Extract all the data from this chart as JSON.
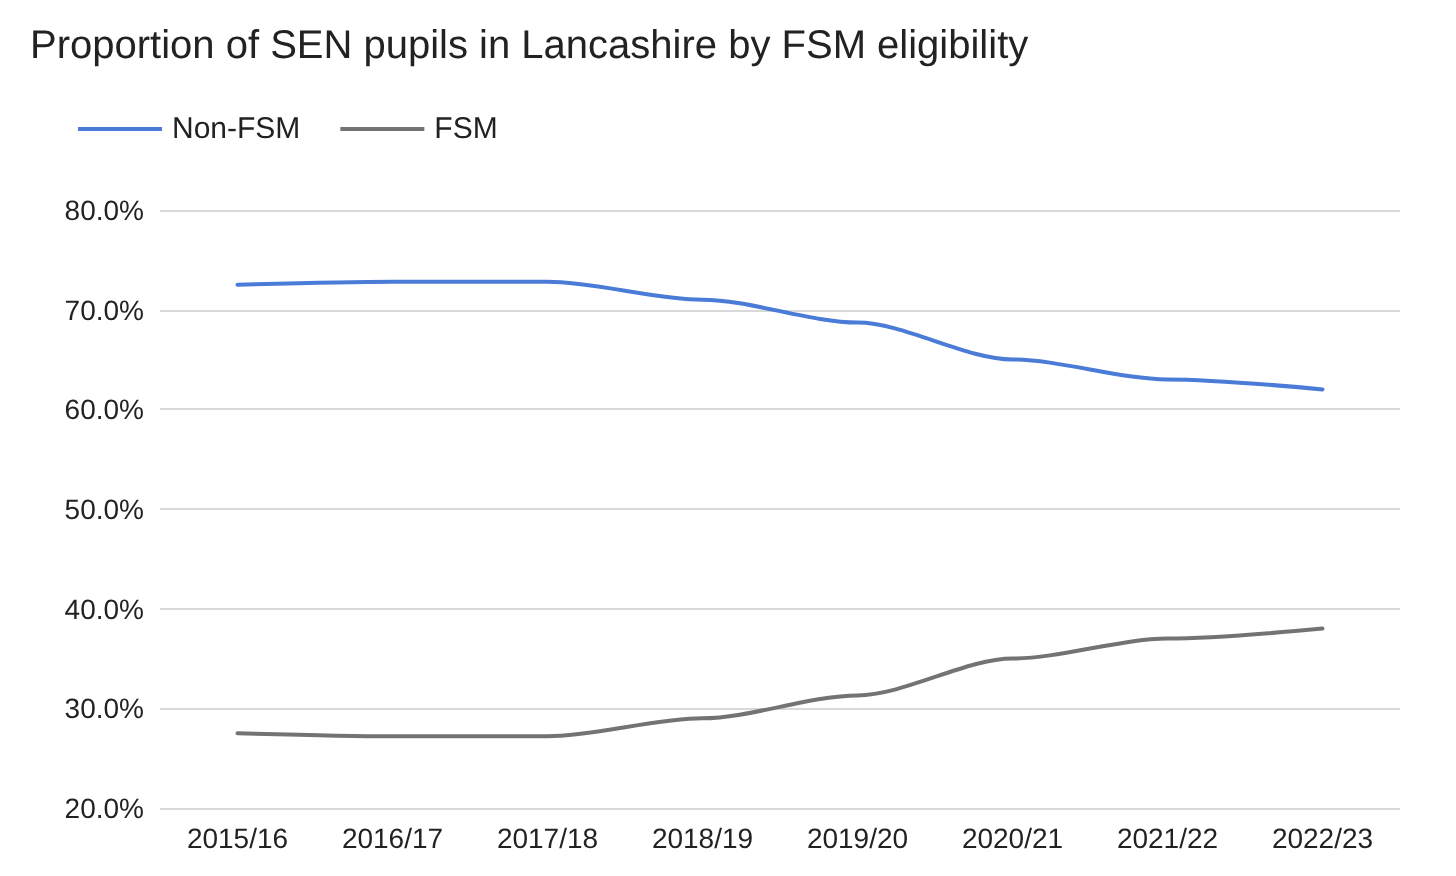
{
  "chart_data": {
    "type": "line",
    "title": "Proportion of SEN pupils in Lancashire by FSM eligibility",
    "categories": [
      "2015/16",
      "2016/17",
      "2017/18",
      "2018/19",
      "2019/20",
      "2020/21",
      "2021/22",
      "2022/23"
    ],
    "series": [
      {
        "name": "Non-FSM",
        "color": "#4a7bd6",
        "values": [
          72.5,
          72.8,
          72.8,
          71.0,
          68.7,
          65.0,
          63.0,
          62.0
        ]
      },
      {
        "name": "FSM",
        "color": "#737373",
        "values": [
          27.5,
          27.2,
          27.2,
          29.0,
          31.3,
          35.0,
          37.0,
          38.0
        ]
      }
    ],
    "ylim": [
      20,
      80
    ],
    "yticks": [
      {
        "value": 20,
        "label": "20.0%"
      },
      {
        "value": 30,
        "label": "30.0%"
      },
      {
        "value": 40,
        "label": "40.0%"
      },
      {
        "value": 50,
        "label": "50.0%"
      },
      {
        "value": 60,
        "label": "60.0%"
      },
      {
        "value": 70,
        "label": "70.0%"
      },
      {
        "value": 80,
        "label": "80.0%"
      }
    ],
    "grid": "y",
    "legend": "top left",
    "marker": "none",
    "line_style": "solid"
  }
}
